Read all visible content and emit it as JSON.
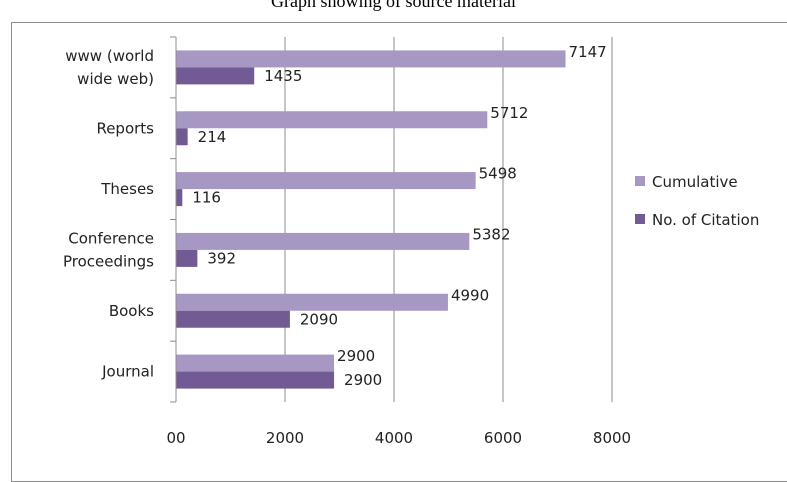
{
  "chart_data": {
    "type": "bar",
    "orientation": "horizontal",
    "title": "Graph showing of source material",
    "categories": [
      "Journal",
      "Books",
      "Conference Proceedings",
      "Theses",
      "Reports",
      "www (world wide web)"
    ],
    "category_lines": [
      [
        "Journal"
      ],
      [
        "Books"
      ],
      [
        "Conference",
        "Proceedings"
      ],
      [
        "Theses"
      ],
      [
        "Reports"
      ],
      [
        "www (world",
        "wide web)"
      ]
    ],
    "series": [
      {
        "name": "Cumulative",
        "values": [
          2900,
          4990,
          5382,
          5498,
          5712,
          7147
        ],
        "color": "#a798c3"
      },
      {
        "name": "No. of Citation",
        "values": [
          2900,
          2090,
          392,
          116,
          214,
          1435
        ],
        "color": "#725a95"
      }
    ],
    "xlim": [
      0,
      8000
    ],
    "xticks": [
      0,
      2000,
      4000,
      6000,
      8000
    ],
    "xtick_labels": [
      "00",
      "2000",
      "4000",
      "6000",
      "8000"
    ],
    "grid": true,
    "legend_position": "right"
  }
}
